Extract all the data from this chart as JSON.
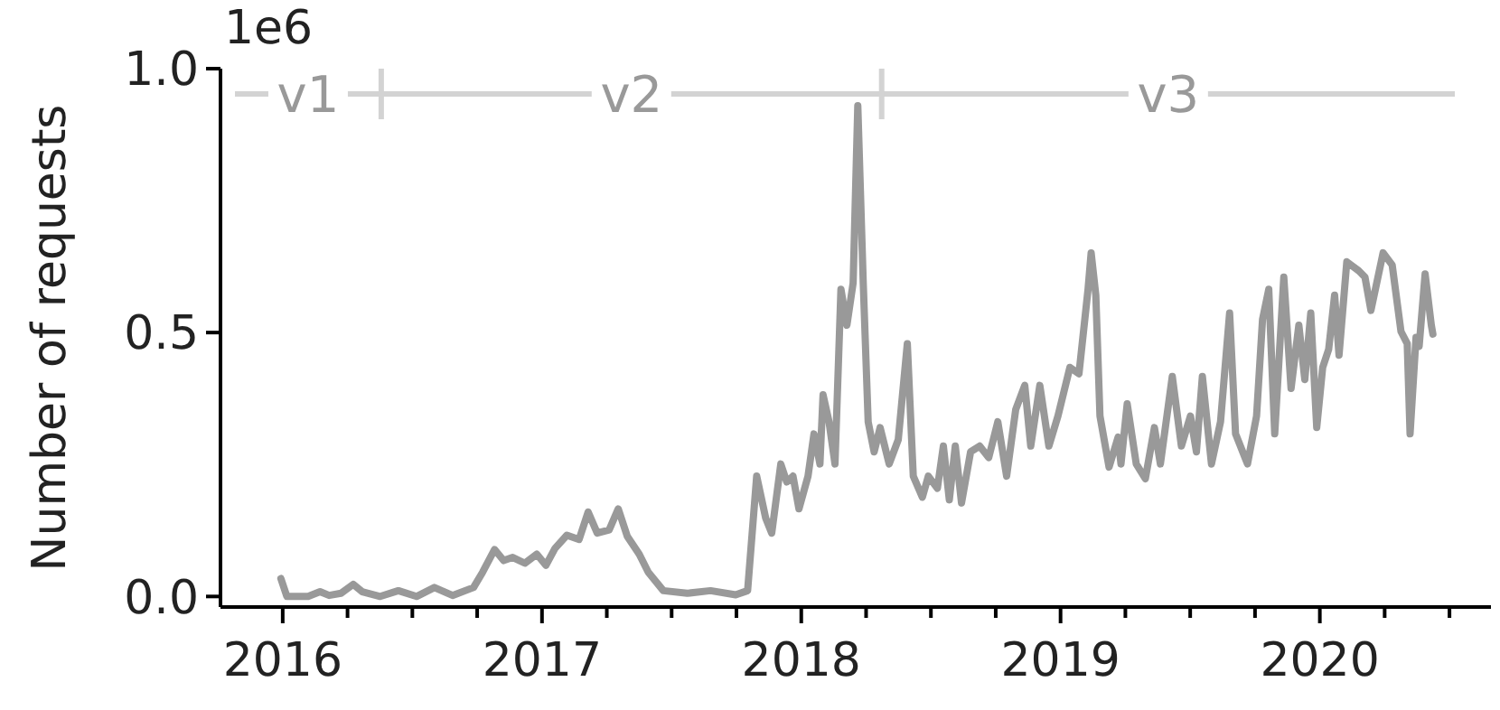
{
  "chart_data": {
    "type": "line",
    "ylabel": "Number of requests",
    "annotations": [
      "1e6",
      "v1"
    ],
    "xlim": [
      2015.76,
      2020.66
    ],
    "ylim": [
      -0.02,
      1.0
    ],
    "xticks": [
      2016,
      {
        "value": 2016.25,
        "label": null
      },
      {
        "value": 2016.5,
        "label": null
      },
      {
        "value": 2016.75,
        "label": null
      },
      2017,
      {
        "value": 2017.25,
        "label": null
      },
      {
        "value": 2017.5,
        "label": null
      },
      {
        "value": 2017.75,
        "label": null
      },
      2018,
      {
        "value": 2018.25,
        "label": null
      },
      {
        "value": 2018.5,
        "label": null
      },
      {
        "value": 2018.75,
        "label": null
      },
      2019,
      {
        "value": 2019.25,
        "label": null
      },
      {
        "value": 2019.5,
        "label": null
      },
      {
        "value": 2019.75,
        "label": null
      },
      2020,
      {
        "value": 2020.25,
        "label": null
      },
      {
        "value": 2020.5,
        "label": null
      }
    ],
    "yticks": [
      {
        "value": 0,
        "label": "0.0"
      },
      0.5,
      {
        "value": 1,
        "label": "1.0"
      }
    ],
    "ref_lines": [
      {
        "axis": "x",
        "value": 2016.38,
        "label": "v2",
        "color": "#d3d3d3"
      },
      {
        "axis": "x",
        "value": 2018.31,
        "label": "v3",
        "color": "#d3d3d3"
      }
    ],
    "series": [
      {
        "color": "#999999",
        "x": [
          2015.993,
          2016.016,
          2016.098,
          2016.144,
          2016.179,
          2016.225,
          2016.272,
          2016.307,
          2016.376,
          2016.446,
          2016.516,
          2016.585,
          2016.655,
          2016.736,
          2016.771,
          2016.817,
          2016.852,
          2016.887,
          2016.934,
          2016.98,
          2017.015,
          2017.05,
          2017.096,
          2017.143,
          2017.178,
          2017.213,
          2017.259,
          2017.294,
          2017.329,
          2017.375,
          2017.41,
          2017.468,
          2017.56,
          2017.65,
          2017.747,
          2017.793,
          2017.828,
          2017.863,
          2017.886,
          2017.921,
          2017.944,
          2017.968,
          2017.991,
          2018.026,
          2018.049,
          2018.072,
          2018.084,
          2018.107,
          2018.13,
          2018.153,
          2018.176,
          2018.2,
          2018.218,
          2018.239,
          2018.258,
          2018.281,
          2018.304,
          2018.339,
          2018.374,
          2018.409,
          2018.432,
          2018.467,
          2018.49,
          2018.525,
          2018.548,
          2018.571,
          2018.594,
          2018.618,
          2018.653,
          2018.688,
          2018.723,
          2018.758,
          2018.792,
          2018.827,
          2018.862,
          2018.885,
          2018.92,
          2018.955,
          2018.99,
          2019.036,
          2019.071,
          2019.106,
          2019.118,
          2019.136,
          2019.152,
          2019.187,
          2019.222,
          2019.233,
          2019.257,
          2019.292,
          2019.327,
          2019.362,
          2019.385,
          2019.431,
          2019.466,
          2019.501,
          2019.524,
          2019.547,
          2019.582,
          2019.617,
          2019.652,
          2019.675,
          2019.721,
          2019.756,
          2019.779,
          2019.803,
          2019.826,
          2019.861,
          2019.889,
          2019.919,
          2019.942,
          2019.965,
          2019.988,
          2020.011,
          2020.034,
          2020.057,
          2020.074,
          2020.104,
          2020.15,
          2020.174,
          2020.197,
          2020.244,
          2020.279,
          2020.313,
          2020.337,
          2020.348,
          2020.371,
          2020.383,
          2020.406,
          2020.43,
          2020.436
        ],
        "values": [
          0.034,
          0.0,
          0.0,
          0.009,
          0.002,
          0.006,
          0.023,
          0.009,
          0.0,
          0.011,
          0.0,
          0.017,
          0.002,
          0.017,
          0.046,
          0.089,
          0.068,
          0.074,
          0.063,
          0.08,
          0.059,
          0.091,
          0.116,
          0.108,
          0.16,
          0.12,
          0.126,
          0.166,
          0.114,
          0.08,
          0.046,
          0.011,
          0.006,
          0.011,
          0.003,
          0.011,
          0.228,
          0.148,
          0.12,
          0.251,
          0.217,
          0.228,
          0.166,
          0.228,
          0.308,
          0.251,
          0.382,
          0.331,
          0.251,
          0.582,
          0.514,
          0.594,
          0.93,
          0.594,
          0.331,
          0.274,
          0.32,
          0.251,
          0.297,
          0.479,
          0.228,
          0.188,
          0.228,
          0.205,
          0.285,
          0.183,
          0.285,
          0.177,
          0.274,
          0.285,
          0.263,
          0.331,
          0.228,
          0.354,
          0.4,
          0.285,
          0.4,
          0.285,
          0.342,
          0.434,
          0.422,
          0.582,
          0.651,
          0.571,
          0.342,
          0.245,
          0.302,
          0.251,
          0.365,
          0.251,
          0.223,
          0.32,
          0.251,
          0.417,
          0.285,
          0.342,
          0.274,
          0.417,
          0.251,
          0.331,
          0.537,
          0.308,
          0.251,
          0.342,
          0.525,
          0.582,
          0.308,
          0.605,
          0.394,
          0.514,
          0.411,
          0.537,
          0.32,
          0.434,
          0.468,
          0.571,
          0.457,
          0.634,
          0.617,
          0.605,
          0.542,
          0.651,
          0.628,
          0.502,
          0.479,
          0.308,
          0.491,
          0.474,
          0.611,
          0.514,
          0.497
        ]
      }
    ]
  }
}
